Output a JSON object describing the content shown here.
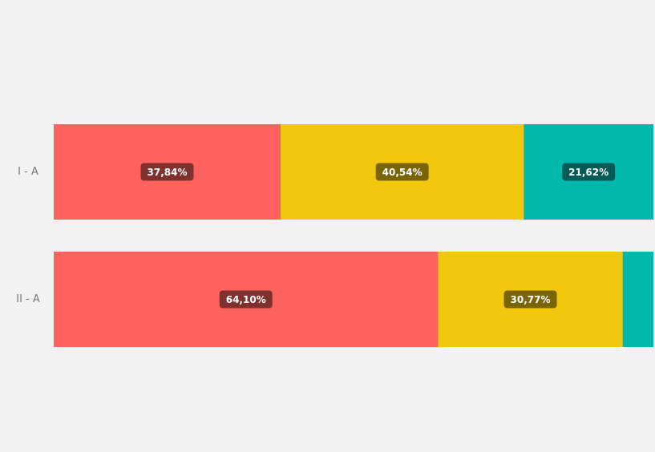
{
  "chart_data": {
    "type": "stacked_bar_horizontal",
    "categories": [
      "I - A",
      "II - A"
    ],
    "xlim": [
      0,
      100
    ],
    "series": [
      {
        "color": "#fd625e",
        "values": [
          37.84,
          64.1
        ],
        "value_labels": [
          "37,84%",
          "64,10%"
        ]
      },
      {
        "color": "#f2c80f",
        "values": [
          40.54,
          30.77
        ],
        "value_labels": [
          "40,54%",
          "30,77%"
        ]
      },
      {
        "color": "#01b8aa",
        "values": [
          21.62,
          5.13
        ],
        "value_labels": [
          "21,62%",
          null
        ]
      }
    ]
  }
}
